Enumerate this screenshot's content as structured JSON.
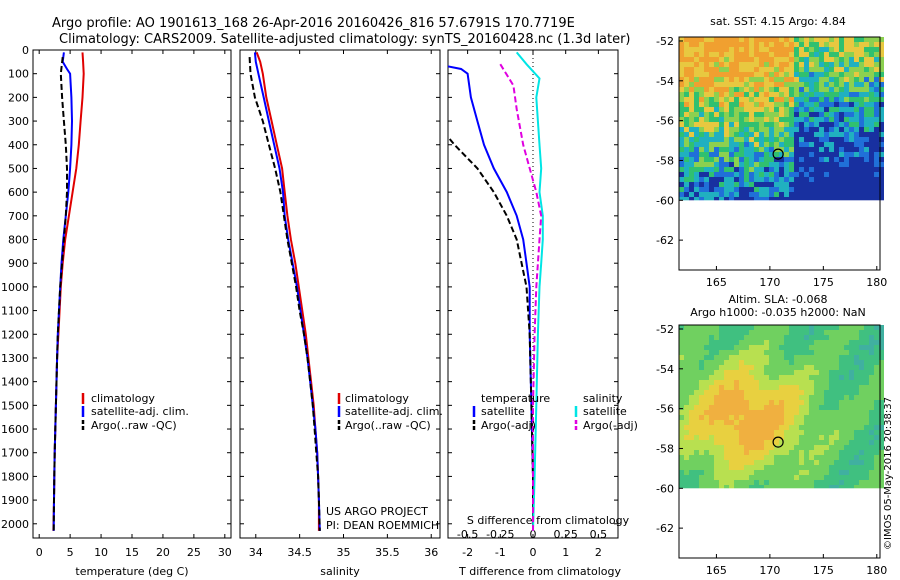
{
  "title_line1": "Argo profile: AO 1901613_168 26-Apr-2016 20160426_816 57.6791S 170.7719E",
  "title_line2": "Climatology: CARS2009. Satellite-adjusted climatology: synTS_20160428.nc (1.3d later)",
  "colors": {
    "climatology": "#e00000",
    "satellite": "#0000ff",
    "argo": "#000000",
    "sat_salinity": "#00e5e5",
    "argo_salinity": "#e000e0"
  },
  "chart_data": [
    {
      "type": "line",
      "xlabel": "temperature (deg C)",
      "xlim": [
        -1,
        31
      ],
      "ylim": [
        2060,
        0
      ],
      "xticks": [
        0,
        5,
        10,
        15,
        20,
        25,
        30
      ],
      "yticks": [
        0,
        100,
        200,
        300,
        400,
        500,
        600,
        700,
        800,
        900,
        1000,
        1100,
        1200,
        1300,
        1400,
        1500,
        1600,
        1700,
        1800,
        1900,
        2000
      ],
      "legend": [
        "climatology",
        "satellite-adj. clim.",
        "Argo(..raw -QC)"
      ],
      "series": [
        {
          "name": "climatology",
          "style": "solid",
          "points": [
            [
              7.0,
              10
            ],
            [
              7.1,
              50
            ],
            [
              7.2,
              100
            ],
            [
              7.0,
              200
            ],
            [
              6.7,
              300
            ],
            [
              6.4,
              400
            ],
            [
              6.0,
              500
            ],
            [
              5.4,
              600
            ],
            [
              4.8,
              700
            ],
            [
              4.2,
              800
            ],
            [
              3.8,
              900
            ],
            [
              3.5,
              1000
            ],
            [
              3.3,
              1100
            ],
            [
              3.1,
              1200
            ],
            [
              2.9,
              1300
            ],
            [
              2.8,
              1400
            ],
            [
              2.7,
              1500
            ],
            [
              2.6,
              1600
            ],
            [
              2.5,
              1700
            ],
            [
              2.45,
              1800
            ],
            [
              2.4,
              1900
            ],
            [
              2.3,
              2030
            ]
          ]
        },
        {
          "name": "satellite-adj. clim.",
          "style": "solid",
          "points": [
            [
              4.0,
              10
            ],
            [
              3.8,
              50
            ],
            [
              4.5,
              80
            ],
            [
              5.0,
              100
            ],
            [
              5.2,
              200
            ],
            [
              5.3,
              300
            ],
            [
              5.2,
              400
            ],
            [
              5.0,
              500
            ],
            [
              4.7,
              600
            ],
            [
              4.3,
              700
            ],
            [
              3.9,
              800
            ],
            [
              3.6,
              900
            ],
            [
              3.4,
              1000
            ],
            [
              3.2,
              1100
            ],
            [
              3.0,
              1200
            ],
            [
              2.9,
              1300
            ],
            [
              2.8,
              1400
            ],
            [
              2.7,
              1500
            ],
            [
              2.6,
              1600
            ],
            [
              2.5,
              1700
            ],
            [
              2.45,
              1800
            ],
            [
              2.4,
              1900
            ],
            [
              2.35,
              2030
            ]
          ]
        },
        {
          "name": "Argo(..raw -QC)",
          "style": "dashed",
          "points": [
            [
              3.8,
              30
            ],
            [
              3.5,
              100
            ],
            [
              3.7,
              200
            ],
            [
              4.0,
              300
            ],
            [
              4.3,
              400
            ],
            [
              4.5,
              500
            ],
            [
              4.5,
              600
            ],
            [
              4.3,
              700
            ],
            [
              4.0,
              800
            ],
            [
              3.7,
              900
            ],
            [
              3.4,
              1000
            ],
            [
              3.2,
              1100
            ],
            [
              3.0,
              1200
            ],
            [
              2.9,
              1300
            ],
            [
              2.8,
              1400
            ],
            [
              2.7,
              1500
            ],
            [
              2.6,
              1600
            ],
            [
              2.5,
              1700
            ],
            [
              2.45,
              1800
            ],
            [
              2.4,
              1900
            ],
            [
              2.35,
              2030
            ]
          ]
        }
      ]
    },
    {
      "type": "line",
      "xlabel": "salinity",
      "xlim": [
        33.82,
        36.1
      ],
      "ylim": [
        2060,
        0
      ],
      "xticks": [
        34,
        34.5,
        35,
        35.5,
        36
      ],
      "legend": [
        "climatology",
        "satellite-adj. clim.",
        "Argo(..raw -QC)"
      ],
      "annotation": [
        "US ARGO PROJECT",
        "PI: DEAN ROEMMICH"
      ],
      "series": [
        {
          "name": "climatology",
          "style": "solid",
          "points": [
            [
              34.01,
              10
            ],
            [
              34.05,
              50
            ],
            [
              34.08,
              100
            ],
            [
              34.12,
              200
            ],
            [
              34.18,
              300
            ],
            [
              34.24,
              400
            ],
            [
              34.3,
              500
            ],
            [
              34.33,
              600
            ],
            [
              34.36,
              700
            ],
            [
              34.4,
              800
            ],
            [
              34.45,
              900
            ],
            [
              34.49,
              1000
            ],
            [
              34.53,
              1100
            ],
            [
              34.57,
              1200
            ],
            [
              34.6,
              1300
            ],
            [
              34.63,
              1400
            ],
            [
              34.66,
              1500
            ],
            [
              34.68,
              1600
            ],
            [
              34.7,
              1700
            ],
            [
              34.71,
              1800
            ],
            [
              34.72,
              1900
            ],
            [
              34.72,
              2030
            ]
          ]
        },
        {
          "name": "satellite-adj. clim.",
          "style": "solid",
          "points": [
            [
              33.99,
              10
            ],
            [
              34.0,
              50
            ],
            [
              34.03,
              100
            ],
            [
              34.09,
              200
            ],
            [
              34.15,
              300
            ],
            [
              34.21,
              400
            ],
            [
              34.27,
              500
            ],
            [
              34.31,
              600
            ],
            [
              34.33,
              700
            ],
            [
              34.37,
              800
            ],
            [
              34.42,
              900
            ],
            [
              34.47,
              1000
            ],
            [
              34.51,
              1100
            ],
            [
              34.55,
              1200
            ],
            [
              34.59,
              1300
            ],
            [
              34.62,
              1400
            ],
            [
              34.65,
              1500
            ],
            [
              34.68,
              1600
            ],
            [
              34.7,
              1700
            ],
            [
              34.71,
              1800
            ],
            [
              34.72,
              1900
            ],
            [
              34.73,
              2030
            ]
          ]
        },
        {
          "name": "Argo(..raw -QC)",
          "style": "dashed",
          "points": [
            [
              33.93,
              30
            ],
            [
              33.94,
              100
            ],
            [
              33.99,
              200
            ],
            [
              34.08,
              300
            ],
            [
              34.15,
              400
            ],
            [
              34.22,
              500
            ],
            [
              34.28,
              600
            ],
            [
              34.32,
              700
            ],
            [
              34.36,
              800
            ],
            [
              34.41,
              900
            ],
            [
              34.46,
              1000
            ],
            [
              34.5,
              1100
            ],
            [
              34.55,
              1200
            ],
            [
              34.59,
              1300
            ],
            [
              34.62,
              1400
            ],
            [
              34.65,
              1500
            ],
            [
              34.67,
              1600
            ],
            [
              34.69,
              1700
            ],
            [
              34.71,
              1800
            ],
            [
              34.72,
              1900
            ],
            [
              34.73,
              2030
            ]
          ]
        }
      ]
    },
    {
      "type": "line",
      "xlabel": "T difference from climatology",
      "xlabel_top": "S difference from climatology",
      "xlim": [
        -2.6,
        2.6
      ],
      "ylim": [
        2060,
        0
      ],
      "xticks": [
        -2,
        -1,
        0,
        1,
        2
      ],
      "xticks_top": [
        {
          "label": "-0.5",
          "value": -2.0
        },
        {
          "label": "-0.25",
          "value": -1.0
        },
        {
          "label": "0",
          "value": 0.0
        },
        {
          "label": "0.25",
          "value": 1.0
        },
        {
          "label": "0.5",
          "value": 2.0
        }
      ],
      "legend_left_title": "temperature",
      "legend_right_title": "salinity",
      "legend": [
        "satellite",
        "Argo(-adj)",
        "satellite",
        "Argo(-adj)"
      ],
      "series": [
        {
          "name": "T satellite",
          "style": "solid",
          "points": [
            [
              -3.0,
              10
            ],
            [
              -3.3,
              50
            ],
            [
              -2.2,
              80
            ],
            [
              -2.0,
              100
            ],
            [
              -1.9,
              200
            ],
            [
              -1.7,
              300
            ],
            [
              -1.5,
              400
            ],
            [
              -1.2,
              500
            ],
            [
              -0.8,
              600
            ],
            [
              -0.5,
              700
            ],
            [
              -0.3,
              800
            ],
            [
              -0.2,
              900
            ],
            [
              -0.1,
              1000
            ],
            [
              -0.1,
              1200
            ],
            [
              -0.05,
              1500
            ],
            [
              0,
              1800
            ],
            [
              0,
              2030
            ]
          ]
        },
        {
          "name": "T Argo(-adj)",
          "style": "dashed",
          "points": [
            [
              -3.2,
              20
            ],
            [
              -3.6,
              100
            ],
            [
              -3.5,
              200
            ],
            [
              -3.0,
              300
            ],
            [
              -2.4,
              400
            ],
            [
              -1.7,
              500
            ],
            [
              -1.2,
              600
            ],
            [
              -0.8,
              700
            ],
            [
              -0.5,
              800
            ],
            [
              -0.35,
              900
            ],
            [
              -0.2,
              1000
            ],
            [
              -0.1,
              1200
            ],
            [
              -0.05,
              1500
            ],
            [
              0,
              1800
            ],
            [
              0,
              2030
            ]
          ]
        },
        {
          "name": "S satellite",
          "style": "solid",
          "points": [
            [
              -0.5,
              10
            ],
            [
              -0.2,
              60
            ],
            [
              0.2,
              120
            ],
            [
              0.1,
              200
            ],
            [
              0.15,
              300
            ],
            [
              0.2,
              400
            ],
            [
              0.25,
              500
            ],
            [
              0.2,
              600
            ],
            [
              0.3,
              700
            ],
            [
              0.3,
              800
            ],
            [
              0.25,
              900
            ],
            [
              0.2,
              1000
            ],
            [
              0.15,
              1200
            ],
            [
              0.1,
              1500
            ],
            [
              0.05,
              1800
            ],
            [
              0,
              2030
            ]
          ]
        },
        {
          "name": "S Argo(-adj)",
          "style": "dashed",
          "points": [
            [
              -1.0,
              60
            ],
            [
              -0.6,
              150
            ],
            [
              -0.5,
              250
            ],
            [
              -0.3,
              400
            ],
            [
              -0.1,
              500
            ],
            [
              0.1,
              600
            ],
            [
              0.25,
              700
            ],
            [
              0.2,
              800
            ],
            [
              0.15,
              900
            ],
            [
              0.1,
              1000
            ],
            [
              0.05,
              1200
            ],
            [
              0,
              1500
            ],
            [
              0,
              2030
            ]
          ]
        }
      ]
    },
    {
      "type": "heatmap",
      "title": "sat. SST: 4.15 Argo: 4.84",
      "xlim": [
        161.5,
        180.3
      ],
      "ylim": [
        -63.5,
        -51.8
      ],
      "xticks": [
        165,
        170,
        175,
        180
      ],
      "yticks": [
        -52,
        -54,
        -56,
        -58,
        -60,
        -62
      ],
      "marker": {
        "lon": 170.77,
        "lat": -57.68
      }
    },
    {
      "type": "heatmap",
      "title_line1": "Altim. SLA: -0.068",
      "title_line2": "Argo h1000: -0.035 h2000: NaN",
      "xlim": [
        161.5,
        180.3
      ],
      "ylim": [
        -63.5,
        -51.8
      ],
      "xticks": [
        165,
        170,
        175,
        180
      ],
      "yticks": [
        -52,
        -54,
        -56,
        -58,
        -60,
        -62
      ],
      "marker": {
        "lon": 170.77,
        "lat": -57.68
      }
    }
  ],
  "credit": "©IMOS 05-May-2016 20:38:37"
}
